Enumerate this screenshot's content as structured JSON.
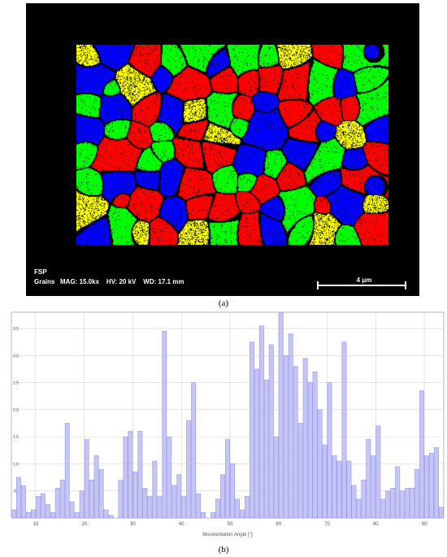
{
  "panel_a": {
    "info_line1": "FSP",
    "info_line2": "Grains   MAG: 15.0kx    HV: 20 kV    WD: 17.1 mm",
    "scalebar_label": "4 μm",
    "caption": "(a)",
    "grain_colors": [
      "#ff0000",
      "#00ff00",
      "#0000ff",
      "#ffff00",
      "#800080"
    ]
  },
  "panel_b": {
    "caption": "(b)"
  },
  "chart_data": {
    "type": "bar",
    "xlabel": "Misorientation Angle [°]",
    "ylabel": "",
    "xlim": [
      5,
      94
    ],
    "ylim": [
      0,
      3.8
    ],
    "bin_width": 1,
    "x_ticks": [
      10,
      20,
      30,
      40,
      50,
      60,
      70,
      80,
      90
    ],
    "y_ticks": [
      0.5,
      1.0,
      1.5,
      2.0,
      2.5,
      3.0,
      3.5
    ],
    "y_tick_labels": [
      ".5",
      "1.0",
      "1.5",
      "2.0",
      "2.5",
      "3.0",
      "3.5"
    ],
    "grid": true,
    "bar_color": "#c5c5f5",
    "edge_color": "#8e8ee8",
    "x": [
      5.5,
      6.5,
      7.5,
      8.5,
      9.5,
      10.5,
      11.5,
      12.5,
      13.5,
      14.5,
      15.5,
      16.5,
      17.5,
      18.5,
      19.5,
      20.5,
      21.5,
      22.5,
      23.5,
      24.5,
      25.5,
      26.5,
      27.5,
      28.5,
      29.5,
      30.5,
      31.5,
      32.5,
      33.5,
      34.5,
      35.5,
      36.5,
      37.5,
      38.5,
      39.5,
      40.5,
      41.5,
      42.5,
      43.5,
      44.5,
      45.5,
      46.5,
      47.5,
      48.5,
      49.5,
      50.5,
      51.5,
      52.5,
      53.5,
      54.5,
      55.5,
      56.5,
      57.5,
      58.5,
      59.5,
      60.5,
      61.5,
      62.5,
      63.5,
      64.5,
      65.5,
      66.5,
      67.5,
      68.5,
      69.5,
      70.5,
      71.5,
      72.5,
      73.5,
      74.5,
      75.5,
      76.5,
      77.5,
      78.5,
      79.5,
      80.5,
      81.5,
      82.5,
      83.5,
      84.5,
      85.5,
      86.5,
      87.5,
      88.5,
      89.5,
      90.5,
      91.5,
      92.5,
      93.5
    ],
    "values": [
      0.15,
      0.75,
      0.6,
      0.1,
      0.15,
      0.4,
      0.45,
      0.25,
      0.1,
      0.55,
      0.7,
      1.75,
      0.3,
      0.1,
      0.5,
      1.45,
      0.7,
      1.15,
      0.9,
      0.15,
      0.05,
      0.0,
      0.7,
      1.5,
      1.6,
      0.85,
      1.6,
      0.55,
      0.4,
      1.05,
      0.4,
      3.45,
      1.5,
      0.6,
      0.8,
      0.4,
      1.8,
      2.5,
      0.45,
      0.1,
      0.0,
      0.1,
      0.35,
      0.8,
      1.45,
      1.0,
      0.35,
      0.15,
      0.4,
      3.25,
      2.75,
      3.55,
      2.55,
      3.2,
      1.5,
      3.8,
      3.0,
      3.4,
      2.8,
      1.75,
      2.95,
      2.5,
      2.7,
      2.0,
      1.35,
      2.5,
      1.15,
      1.05,
      3.25,
      1.05,
      0.6,
      0.35,
      0.7,
      1.45,
      1.15,
      1.7,
      0.35,
      0.5,
      0.55,
      0.95,
      0.5,
      0.55,
      0.55,
      0.9,
      2.35,
      1.15,
      1.2,
      1.3,
      0.2
    ]
  }
}
